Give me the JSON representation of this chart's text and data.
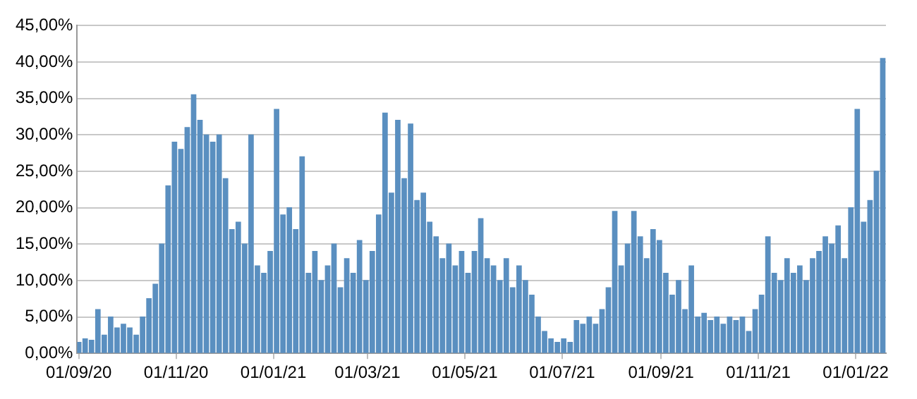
{
  "chart_data": {
    "type": "bar",
    "x": [
      "2020-09-01",
      "2020-09-05",
      "2020-09-09",
      "2020-09-13",
      "2020-09-17",
      "2020-09-21",
      "2020-09-25",
      "2020-09-29",
      "2020-10-03",
      "2020-10-07",
      "2020-10-11",
      "2020-10-15",
      "2020-10-19",
      "2020-10-23",
      "2020-10-27",
      "2020-10-31",
      "2020-11-04",
      "2020-11-08",
      "2020-11-12",
      "2020-11-16",
      "2020-11-20",
      "2020-11-24",
      "2020-11-28",
      "2020-12-02",
      "2020-12-06",
      "2020-12-10",
      "2020-12-14",
      "2020-12-18",
      "2020-12-22",
      "2020-12-26",
      "2020-12-30",
      "2021-01-03",
      "2021-01-07",
      "2021-01-11",
      "2021-01-15",
      "2021-01-19",
      "2021-01-23",
      "2021-01-27",
      "2021-01-31",
      "2021-02-04",
      "2021-02-08",
      "2021-02-12",
      "2021-02-16",
      "2021-02-20",
      "2021-02-24",
      "2021-02-28",
      "2021-03-04",
      "2021-03-08",
      "2021-03-12",
      "2021-03-16",
      "2021-03-20",
      "2021-03-24",
      "2021-03-28",
      "2021-04-01",
      "2021-04-05",
      "2021-04-09",
      "2021-04-13",
      "2021-04-17",
      "2021-04-21",
      "2021-04-25",
      "2021-04-29",
      "2021-05-03",
      "2021-05-07",
      "2021-05-11",
      "2021-05-15",
      "2021-05-19",
      "2021-05-23",
      "2021-05-27",
      "2021-05-31",
      "2021-06-04",
      "2021-06-08",
      "2021-06-12",
      "2021-06-16",
      "2021-06-20",
      "2021-06-24",
      "2021-06-28",
      "2021-07-02",
      "2021-07-06",
      "2021-07-10",
      "2021-07-14",
      "2021-07-18",
      "2021-07-22",
      "2021-07-26",
      "2021-07-30",
      "2021-08-03",
      "2021-08-07",
      "2021-08-11",
      "2021-08-15",
      "2021-08-19",
      "2021-08-23",
      "2021-08-27",
      "2021-08-31",
      "2021-09-04",
      "2021-09-08",
      "2021-09-12",
      "2021-09-16",
      "2021-09-20",
      "2021-09-24",
      "2021-09-28",
      "2021-10-02",
      "2021-10-06",
      "2021-10-10",
      "2021-10-14",
      "2021-10-18",
      "2021-10-22",
      "2021-10-26",
      "2021-10-30",
      "2021-11-03",
      "2021-11-07",
      "2021-11-11",
      "2021-11-15",
      "2021-11-19",
      "2021-11-23",
      "2021-11-27",
      "2021-12-01",
      "2021-12-05",
      "2021-12-09",
      "2021-12-13",
      "2021-12-17",
      "2021-12-21",
      "2021-12-25",
      "2021-12-29",
      "2022-01-02",
      "2022-01-06",
      "2022-01-10",
      "2022-01-14",
      "2022-01-18"
    ],
    "values": [
      1.5,
      2,
      1.8,
      6,
      2.5,
      5,
      3.5,
      4,
      3.5,
      2.5,
      5,
      7.5,
      9.5,
      15,
      23,
      29,
      28,
      31,
      35.5,
      32,
      30,
      29,
      30,
      24,
      17,
      18,
      15,
      30,
      12,
      11,
      14,
      33.5,
      19,
      20,
      17,
      27,
      11,
      14,
      10,
      12,
      15,
      9,
      13,
      11,
      15.5,
      10,
      14,
      19,
      33,
      22,
      32,
      24,
      31.5,
      21,
      22,
      18,
      16,
      13,
      15,
      12,
      14,
      11,
      14,
      18.5,
      13,
      12,
      10,
      13,
      9,
      12,
      10,
      8,
      5,
      3,
      2,
      1.5,
      2,
      1.5,
      4.5,
      4,
      5,
      4,
      6,
      9,
      19.5,
      12,
      15,
      19.5,
      16,
      13,
      17,
      15.5,
      11,
      8,
      10,
      6,
      12,
      5,
      5.5,
      4.5,
      5,
      4,
      5,
      4.5,
      5,
      3,
      6,
      8,
      16,
      11,
      10,
      13,
      11,
      12,
      10,
      13,
      14,
      16,
      15,
      17.5,
      13,
      20,
      33.5,
      18,
      21,
      25,
      40.5
    ],
    "color": "#5a8fc0",
    "xlim": [
      "2020-08-31",
      "2022-01-20"
    ],
    "xticks": [
      {
        "value": "2020-09-01",
        "label": "01/09/20"
      },
      {
        "value": "2020-11-01",
        "label": "01/11/20"
      },
      {
        "value": "2021-01-01",
        "label": "01/01/21"
      },
      {
        "value": "2021-03-01",
        "label": "01/03/21"
      },
      {
        "value": "2021-05-01",
        "label": "01/05/21"
      },
      {
        "value": "2021-07-01",
        "label": "01/07/21"
      },
      {
        "value": "2021-09-01",
        "label": "01/09/21"
      },
      {
        "value": "2021-11-01",
        "label": "01/11/21"
      },
      {
        "value": "2022-01-01",
        "label": "01/01/22"
      }
    ],
    "ylim": [
      0,
      45
    ],
    "yticks": [
      {
        "value": 0,
        "label": "0,00%"
      },
      {
        "value": 5,
        "label": "5,00%"
      },
      {
        "value": 10,
        "label": "10,00%"
      },
      {
        "value": 15,
        "label": "15,00%"
      },
      {
        "value": 20,
        "label": "20,00%"
      },
      {
        "value": 25,
        "label": "25,00%"
      },
      {
        "value": 30,
        "label": "30,00%"
      },
      {
        "value": 35,
        "label": "35,00%"
      },
      {
        "value": 40,
        "label": "40,00%"
      },
      {
        "value": 45,
        "label": "45,00%"
      }
    ],
    "grid": "y"
  }
}
